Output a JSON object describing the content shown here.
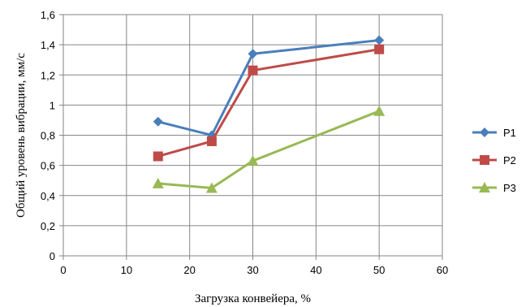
{
  "chart_data": {
    "type": "line",
    "xlabel": "Загрузка конвейера, %",
    "ylabel": "Общий уровень вибрации, мм/с",
    "xlim": [
      0,
      60
    ],
    "ylim": [
      0,
      1.6
    ],
    "xticks": [
      "0",
      "10",
      "20",
      "30",
      "40",
      "50",
      "60"
    ],
    "yticks": [
      "0",
      "0,2",
      "0,4",
      "0,6",
      "0,8",
      "1",
      "1,2",
      "1,4",
      "1,6"
    ],
    "grid": true,
    "legend_position": "right",
    "series": [
      {
        "name": "P1",
        "color": "#4a7ebb",
        "marker": "diamond",
        "x": [
          15,
          23.5,
          30,
          50
        ],
        "y": [
          0.89,
          0.8,
          1.34,
          1.43
        ]
      },
      {
        "name": "P2",
        "color": "#be4b48",
        "marker": "square",
        "x": [
          15,
          23.5,
          30,
          50
        ],
        "y": [
          0.66,
          0.76,
          1.23,
          1.37
        ]
      },
      {
        "name": "P3",
        "color": "#98b954",
        "marker": "triangle",
        "x": [
          15,
          23.5,
          30,
          50
        ],
        "y": [
          0.48,
          0.45,
          0.63,
          0.96
        ]
      }
    ]
  }
}
